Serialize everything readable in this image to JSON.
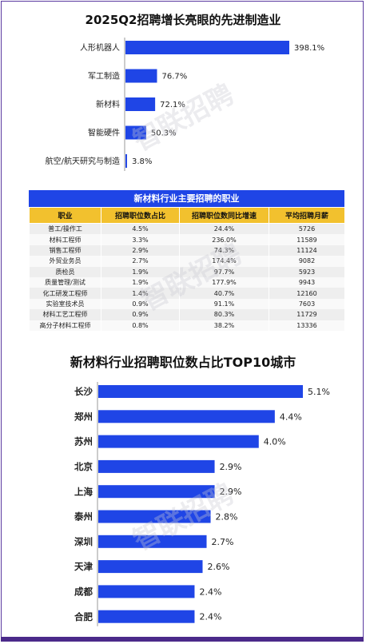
{
  "watermark": "智联招聘",
  "chart1": {
    "type": "bar",
    "title": "2025Q2招聘增长亮眼的先进制造业",
    "categories": [
      "人形机器人",
      "军工制造",
      "新材料",
      "智能硬件",
      "航空/航天研究与制造"
    ],
    "values": [
      398.1,
      76.7,
      72.1,
      50.3,
      3.8
    ],
    "labels": [
      "398.1%",
      "76.7%",
      "72.1%",
      "50.3%",
      "3.8%"
    ],
    "xlim": [
      0,
      398.1
    ],
    "bar_color": "#1f45e6"
  },
  "table": {
    "title": "新材料行业主要招聘的职业",
    "headers": [
      "职业",
      "招聘职位数占比",
      "招聘职位数同比增速",
      "平均招聘月薪"
    ],
    "rows": [
      [
        "普工/操作工",
        "4.5%",
        "24.4%",
        "5726"
      ],
      [
        "材料工程师",
        "3.3%",
        "236.0%",
        "11589"
      ],
      [
        "销售工程师",
        "2.9%",
        "74.3%",
        "11124"
      ],
      [
        "外贸业务员",
        "2.7%",
        "174.4%",
        "9082"
      ],
      [
        "质检员",
        "1.9%",
        "97.7%",
        "5923"
      ],
      [
        "质量管理/测试",
        "1.9%",
        "177.9%",
        "9943"
      ],
      [
        "化工研发工程师",
        "1.4%",
        "40.7%",
        "12160"
      ],
      [
        "实验室技术员",
        "0.9%",
        "91.1%",
        "7603"
      ],
      [
        "材料工艺工程师",
        "0.9%",
        "80.3%",
        "11729"
      ],
      [
        "高分子材料工程师",
        "0.8%",
        "38.2%",
        "13336"
      ]
    ],
    "header_color": "#f2c12e",
    "title_color": "#1f45e6"
  },
  "chart2": {
    "type": "bar",
    "title": "新材料行业招聘职位数占比TOP10城市",
    "categories": [
      "长沙",
      "郑州",
      "苏州",
      "北京",
      "上海",
      "泰州",
      "深圳",
      "天津",
      "成都",
      "合肥"
    ],
    "values": [
      5.1,
      4.4,
      4.0,
      2.9,
      2.9,
      2.8,
      2.7,
      2.6,
      2.4,
      2.4
    ],
    "labels": [
      "5.1%",
      "4.4%",
      "4.0%",
      "2.9%",
      "2.9%",
      "2.8%",
      "2.7%",
      "2.6%",
      "2.4%",
      "2.4%"
    ],
    "xlim": [
      0,
      5.1
    ],
    "bar_color": "#1f45e6"
  }
}
